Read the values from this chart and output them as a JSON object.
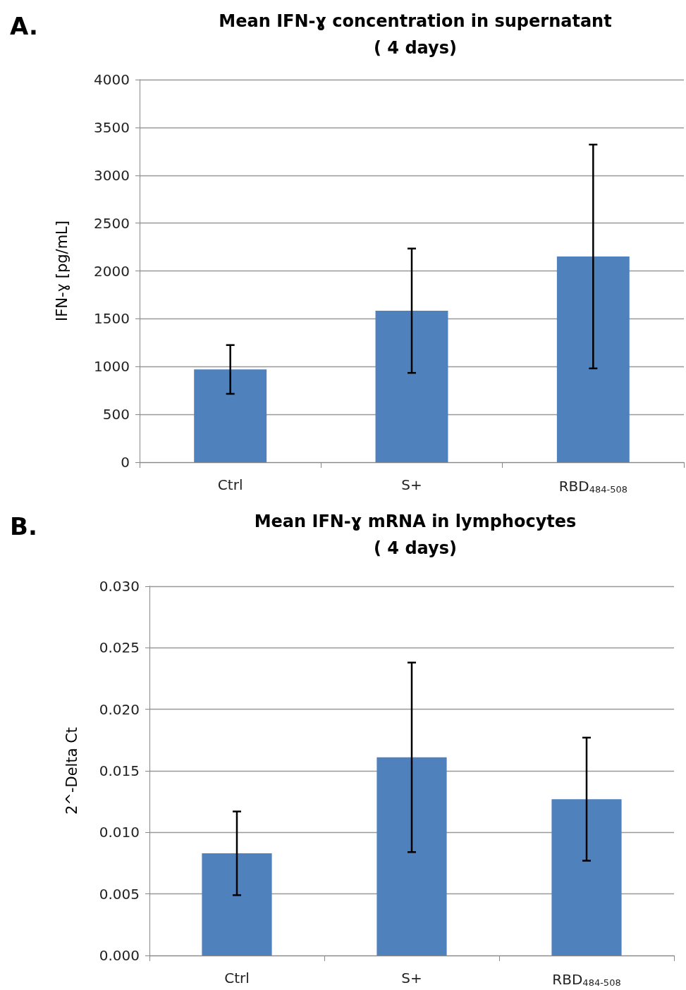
{
  "chart_data": [
    {
      "type": "bar",
      "title": "Mean IFN-ɣ concentration in supernatant\n( 4 days)",
      "ylabel": "IFN-ɣ [pg/mL]",
      "annotations": [
        "A."
      ],
      "categories": [
        "Ctrl",
        "S+",
        "RBD$_{484-508}$"
      ],
      "series": [
        {
          "color": "#4f81bd",
          "values": [
            970,
            1584,
            2151
          ],
          "errors": [
            255,
            650,
            1170
          ]
        }
      ],
      "ylim": [
        0,
        4000
      ],
      "yticks": [
        0,
        500,
        1000,
        1500,
        2000,
        2500,
        3000,
        3500,
        4000
      ],
      "grid": "y"
    },
    {
      "type": "bar",
      "title": "Mean IFN-ɣ mRNA in lymphocytes\n( 4 days)",
      "ylabel": "2^-Delta Ct",
      "annotations": [
        "B."
      ],
      "categories": [
        "Ctrl",
        "S+",
        "RBD$_{484-508}$"
      ],
      "series": [
        {
          "color": "#4f81bd",
          "values": [
            0.0083,
            0.0161,
            0.0127
          ],
          "errors": [
            0.0034,
            0.0077,
            0.005
          ]
        }
      ],
      "ylim": [
        0,
        0.03
      ],
      "yticks": [
        {
          "value": 0,
          "label": "0.000"
        },
        {
          "value": 0.005,
          "label": "0.005"
        },
        {
          "value": 0.01,
          "label": "0.010"
        },
        {
          "value": 0.015,
          "label": "0.015"
        },
        {
          "value": 0.02,
          "label": "0.020"
        },
        {
          "value": 0.025,
          "label": "0.025"
        },
        {
          "value": 0.03,
          "label": "0.030"
        }
      ],
      "grid": "y"
    }
  ]
}
